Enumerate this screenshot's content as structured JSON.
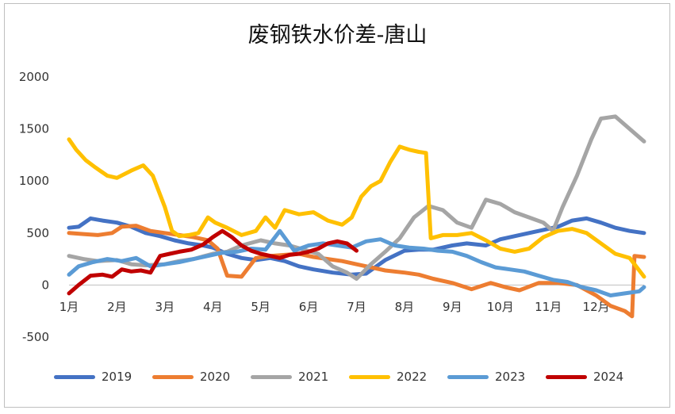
{
  "chart_data": {
    "type": "line",
    "title": "废钢铁水价差-唐山",
    "xlabel": "",
    "ylabel": "",
    "ylim": [
      -500,
      2000
    ],
    "yticks": [
      "2000",
      "1500",
      "1000",
      "500",
      "0",
      "-500"
    ],
    "xticks": [
      "1月",
      "2月",
      "3月",
      "4月",
      "5月",
      "6月",
      "7月",
      "8月",
      "9月",
      "10月",
      "11月",
      "12月"
    ],
    "x_range_months": [
      1,
      13
    ],
    "grid": false,
    "legend_position": "bottom",
    "series": [
      {
        "name": "2019",
        "color": "#4472c4",
        "x": [
          1.0,
          1.2,
          1.45,
          1.7,
          2.0,
          2.3,
          2.6,
          2.9,
          3.2,
          3.5,
          3.8,
          4.0,
          4.3,
          4.6,
          4.9,
          5.2,
          5.5,
          5.8,
          6.1,
          6.5,
          6.9,
          7.2,
          7.6,
          8.0,
          8.3,
          8.6,
          9.0,
          9.3,
          9.7,
          10.0,
          10.4,
          10.8,
          11.2,
          11.5,
          11.8,
          12.1,
          12.4,
          12.7,
          13.0
        ],
        "values": [
          550,
          560,
          640,
          620,
          600,
          560,
          500,
          470,
          430,
          400,
          380,
          360,
          300,
          260,
          240,
          260,
          230,
          180,
          150,
          120,
          100,
          110,
          240,
          330,
          340,
          340,
          380,
          400,
          380,
          440,
          480,
          520,
          560,
          620,
          640,
          600,
          550,
          520,
          500
        ]
      },
      {
        "name": "2020",
        "color": "#ed7d31",
        "x": [
          1.0,
          1.3,
          1.6,
          1.9,
          2.1,
          2.4,
          2.7,
          3.0,
          3.3,
          3.6,
          3.9,
          4.1,
          4.3,
          4.6,
          4.9,
          5.2,
          5.5,
          5.8,
          6.1,
          6.4,
          6.7,
          7.0,
          7.3,
          7.6,
          8.0,
          8.3,
          8.6,
          9.0,
          9.4,
          9.8,
          10.1,
          10.4,
          10.8,
          11.2,
          11.6,
          12.0,
          12.3,
          12.6,
          12.75,
          12.8,
          13.0
        ],
        "values": [
          500,
          490,
          480,
          500,
          560,
          570,
          520,
          500,
          480,
          460,
          430,
          350,
          90,
          80,
          260,
          280,
          290,
          300,
          270,
          250,
          230,
          200,
          170,
          140,
          120,
          100,
          60,
          20,
          -40,
          20,
          -20,
          -50,
          20,
          20,
          0,
          -100,
          -200,
          -250,
          -300,
          280,
          270
        ]
      },
      {
        "name": "2021",
        "color": "#a5a5a5",
        "x": [
          1.0,
          1.3,
          1.6,
          2.0,
          2.3,
          2.6,
          3.0,
          3.3,
          3.6,
          4.0,
          4.3,
          4.6,
          5.0,
          5.3,
          5.6,
          5.9,
          6.2,
          6.5,
          6.8,
          7.0,
          7.3,
          7.6,
          7.9,
          8.2,
          8.5,
          8.8,
          9.1,
          9.4,
          9.7,
          10.0,
          10.3,
          10.6,
          10.9,
          11.1,
          11.3,
          11.6,
          11.9,
          12.1,
          12.4,
          12.7,
          13.0
        ],
        "values": [
          280,
          250,
          230,
          240,
          200,
          190,
          200,
          230,
          250,
          300,
          320,
          380,
          430,
          400,
          380,
          340,
          300,
          180,
          120,
          60,
          200,
          320,
          450,
          650,
          760,
          720,
          600,
          550,
          820,
          780,
          700,
          650,
          600,
          520,
          750,
          1050,
          1400,
          1600,
          1620,
          1500,
          1380
        ]
      },
      {
        "name": "2022",
        "color": "#ffc000",
        "x": [
          1.0,
          1.15,
          1.35,
          1.55,
          1.8,
          2.0,
          2.3,
          2.55,
          2.75,
          3.0,
          3.15,
          3.3,
          3.5,
          3.7,
          3.9,
          4.05,
          4.3,
          4.6,
          4.9,
          5.1,
          5.3,
          5.5,
          5.8,
          6.1,
          6.4,
          6.7,
          6.9,
          7.1,
          7.3,
          7.5,
          7.7,
          7.9,
          8.1,
          8.3,
          8.45,
          8.55,
          8.8,
          9.1,
          9.4,
          9.7,
          10.0,
          10.3,
          10.6,
          10.9,
          11.2,
          11.5,
          11.8,
          12.1,
          12.4,
          12.7,
          13.0
        ],
        "values": [
          1400,
          1300,
          1200,
          1130,
          1050,
          1030,
          1100,
          1150,
          1050,
          750,
          520,
          470,
          480,
          500,
          650,
          600,
          550,
          480,
          520,
          650,
          550,
          720,
          680,
          700,
          620,
          580,
          650,
          850,
          950,
          1000,
          1180,
          1330,
          1300,
          1280,
          1270,
          450,
          480,
          480,
          500,
          430,
          350,
          320,
          350,
          460,
          520,
          540,
          500,
          400,
          300,
          260,
          80
        ]
      },
      {
        "name": "2023",
        "color": "#5b9bd5",
        "x": [
          1.0,
          1.2,
          1.5,
          1.8,
          2.1,
          2.4,
          2.7,
          3.0,
          3.3,
          3.6,
          3.9,
          4.2,
          4.5,
          4.8,
          5.1,
          5.4,
          5.7,
          6.0,
          6.3,
          6.6,
          6.9,
          7.2,
          7.5,
          7.8,
          8.1,
          8.4,
          8.7,
          9.0,
          9.3,
          9.6,
          9.9,
          10.2,
          10.5,
          10.8,
          11.1,
          11.4,
          11.7,
          12.0,
          12.3,
          12.6,
          12.9,
          13.0
        ],
        "values": [
          100,
          180,
          220,
          250,
          230,
          260,
          180,
          200,
          220,
          250,
          280,
          310,
          320,
          350,
          340,
          520,
          330,
          380,
          400,
          380,
          360,
          420,
          440,
          380,
          360,
          350,
          330,
          320,
          280,
          220,
          170,
          150,
          130,
          90,
          50,
          30,
          -20,
          -50,
          -100,
          -80,
          -60,
          -20
        ]
      },
      {
        "name": "2024",
        "color": "#c00000",
        "x": [
          1.0,
          1.2,
          1.45,
          1.7,
          1.9,
          2.1,
          2.3,
          2.5,
          2.7,
          2.9,
          3.1,
          3.3,
          3.55,
          3.8,
          4.0,
          4.2,
          4.4,
          4.6,
          4.8,
          5.0,
          5.2,
          5.4,
          5.6,
          5.8,
          6.0,
          6.2,
          6.4,
          6.6,
          6.8,
          7.0
        ],
        "values": [
          -80,
          0,
          90,
          100,
          80,
          150,
          130,
          140,
          120,
          280,
          300,
          320,
          340,
          390,
          460,
          520,
          460,
          380,
          330,
          300,
          280,
          260,
          290,
          300,
          320,
          350,
          400,
          420,
          400,
          330
        ]
      }
    ]
  }
}
